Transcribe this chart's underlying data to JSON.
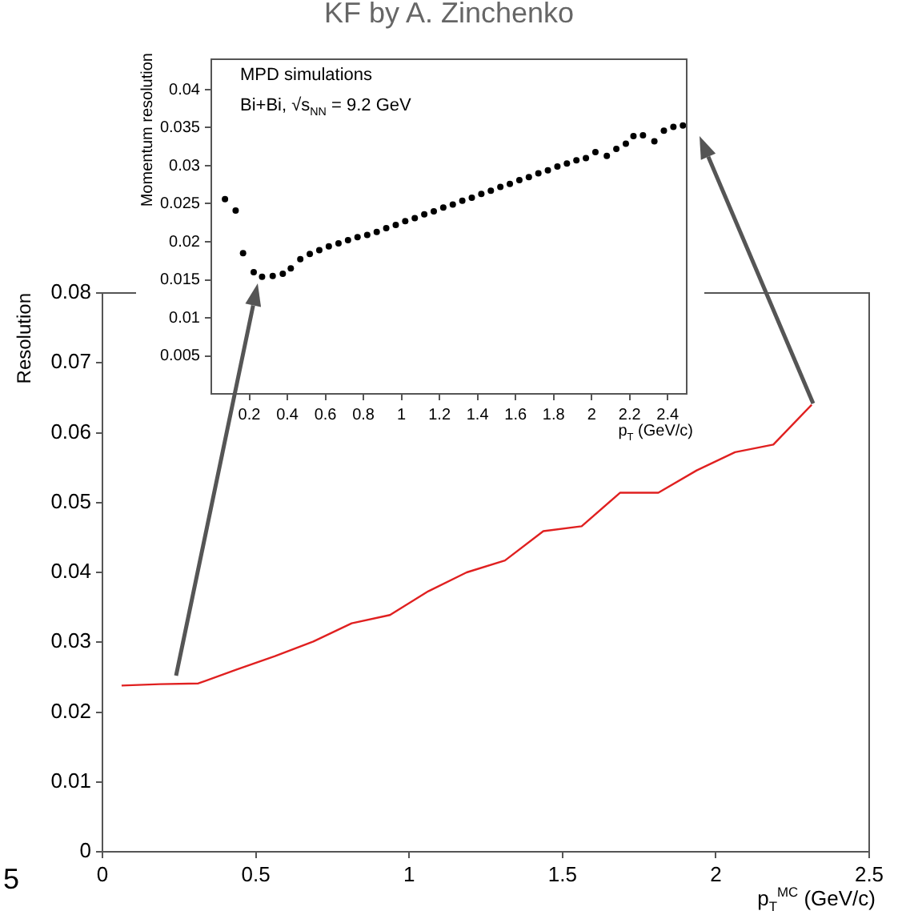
{
  "chart_data": [
    {
      "type": "line",
      "xlabel": "p$_{T}$$^{MC}$ (GeV/c)",
      "ylabel": "Resolution",
      "marker": "none",
      "color": "#e02020",
      "x": [
        0.0625,
        0.1875,
        0.3125,
        0.4375,
        0.5625,
        0.6875,
        0.8125,
        0.9375,
        1.0625,
        1.1875,
        1.3125,
        1.4375,
        1.5625,
        1.6875,
        1.8125,
        1.9375,
        2.0625,
        2.1875,
        2.3125
      ],
      "values": [
        0.0238,
        0.024,
        0.0241,
        0.0261,
        0.028,
        0.0301,
        0.0327,
        0.0339,
        0.0373,
        0.04,
        0.0417,
        0.0459,
        0.0466,
        0.0514,
        0.0514,
        0.0546,
        0.0572,
        0.0583,
        0.064
      ],
      "xlim": [
        0,
        2.5
      ],
      "ylim": [
        0,
        0.08
      ],
      "xticks": [
        0,
        0.5,
        1,
        1.5,
        2,
        2.5
      ],
      "yticks": [
        0,
        0.01,
        0.02,
        0.03,
        0.04,
        0.05,
        0.06,
        0.07,
        0.08
      ],
      "annotations": [
        "5"
      ]
    },
    {
      "type": "scatter",
      "title": "KF by A. Zinchenko",
      "xlabel": "p$_{T}$ (GeV/c)",
      "ylabel": "Momentum resolution",
      "marker": "circle",
      "color": "#000000",
      "x": [
        0.072,
        0.128,
        0.167,
        0.223,
        0.267,
        0.323,
        0.376,
        0.418,
        0.468,
        0.518,
        0.568,
        0.618,
        0.669,
        0.719,
        0.769,
        0.82,
        0.87,
        0.92,
        0.97,
        1.02,
        1.07,
        1.12,
        1.17,
        1.22,
        1.27,
        1.32,
        1.37,
        1.42,
        1.47,
        1.52,
        1.57,
        1.62,
        1.67,
        1.72,
        1.77,
        1.82,
        1.87,
        1.92,
        1.97,
        2.02,
        2.08,
        2.13,
        2.18,
        2.22,
        2.27,
        2.33,
        2.38,
        2.43,
        2.48
      ],
      "values": [
        0.0256,
        0.0241,
        0.0185,
        0.016,
        0.0154,
        0.0155,
        0.0158,
        0.0165,
        0.0177,
        0.0184,
        0.0189,
        0.0194,
        0.0198,
        0.0202,
        0.0206,
        0.0209,
        0.0213,
        0.0218,
        0.0222,
        0.0227,
        0.0231,
        0.0236,
        0.024,
        0.0245,
        0.0249,
        0.0254,
        0.0258,
        0.0263,
        0.0267,
        0.0272,
        0.0276,
        0.0281,
        0.0285,
        0.029,
        0.0294,
        0.0299,
        0.0303,
        0.0307,
        0.031,
        0.0318,
        0.0313,
        0.0322,
        0.0329,
        0.0339,
        0.034,
        0.0332,
        0.0346,
        0.0351,
        0.0353
      ],
      "xlim": [
        0,
        2.5
      ],
      "ylim": [
        0,
        0.044
      ],
      "xticks": [
        0.2,
        0.4,
        0.6,
        0.8,
        1,
        1.2,
        1.4,
        1.6,
        1.8,
        2,
        2.2,
        2.4
      ],
      "yticks": [
        0.005,
        0.01,
        0.015,
        0.02,
        0.025,
        0.03,
        0.035,
        0.04
      ],
      "annotations": [
        "MPD simulations",
        "Bi+Bi, √s$_{NN}$ = 9.2 GeV"
      ]
    }
  ]
}
